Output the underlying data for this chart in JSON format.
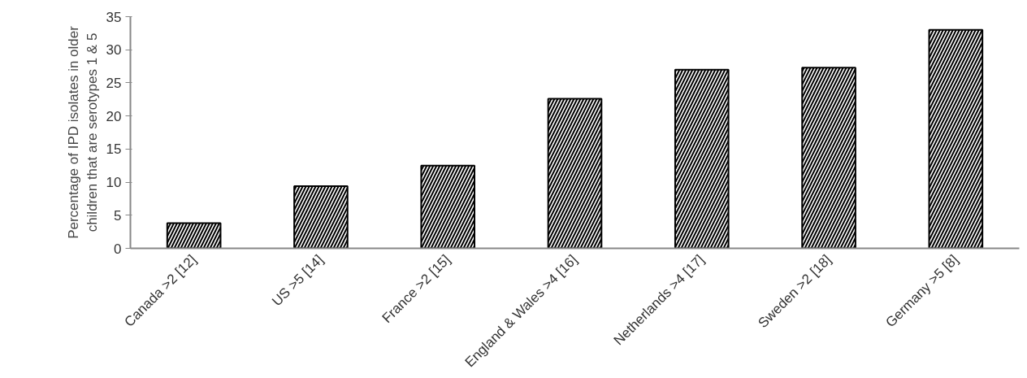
{
  "chart_data": {
    "type": "bar",
    "ylabel": "Percentage of IPD isolates in older\nchildren that are serotypes 1 & 5",
    "categories": [
      "Canada >2 [12]",
      "US >5 [14]",
      "France >2 [15]",
      "England & Wales >4 [16]",
      "Netherlands >4 [17]",
      "Sweden >2 [18]",
      "Germany >5 [8]"
    ],
    "values": [
      3.8,
      9.4,
      12.5,
      22.6,
      27,
      27.3,
      33
    ],
    "color": "#000000",
    "ylim": [
      0,
      35
    ],
    "yticks": [
      0,
      5,
      10,
      15,
      20,
      25,
      30,
      35
    ],
    "grid": false
  }
}
